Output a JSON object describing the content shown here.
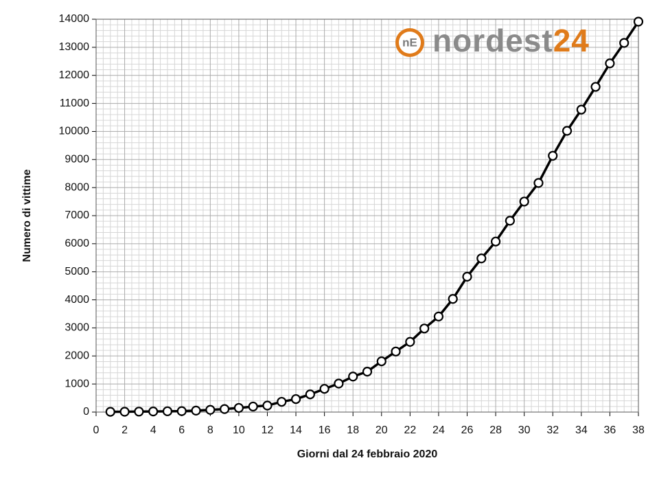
{
  "chart_data": {
    "type": "line",
    "xlabel": "Giorni dal 24 febbraio 2020",
    "ylabel": "Numero di vittime",
    "watermark": {
      "icon": "nE",
      "text": "nordest",
      "number": "24"
    },
    "x": [
      1,
      2,
      3,
      4,
      5,
      6,
      7,
      8,
      9,
      10,
      11,
      12,
      13,
      14,
      15,
      16,
      17,
      18,
      19,
      20,
      21,
      22,
      23,
      24,
      25,
      26,
      27,
      28,
      29,
      30,
      31,
      32,
      33,
      34,
      35,
      36,
      37,
      38
    ],
    "series": [
      {
        "name": "Numero di vittime",
        "color": "#000000",
        "values": [
          10,
          12,
          17,
          21,
          29,
          34,
          52,
          79,
          107,
          148,
          197,
          233,
          366,
          463,
          631,
          827,
          1016,
          1266,
          1441,
          1809,
          2158,
          2503,
          2978,
          3405,
          4032,
          4825,
          5476,
          6077,
          6820,
          7503,
          8165,
          9134,
          10023,
          10779,
          11591,
          12428,
          13155,
          13915
        ]
      }
    ],
    "xlim": [
      0,
      38
    ],
    "xticks": [
      0,
      2,
      4,
      6,
      8,
      10,
      12,
      14,
      16,
      18,
      20,
      22,
      24,
      26,
      28,
      30,
      32,
      34,
      36,
      38
    ],
    "ylim": [
      0,
      14000
    ],
    "yticks": [
      0,
      1000,
      2000,
      3000,
      4000,
      5000,
      6000,
      7000,
      8000,
      9000,
      10000,
      11000,
      12000,
      13000,
      14000
    ],
    "grid": true
  }
}
